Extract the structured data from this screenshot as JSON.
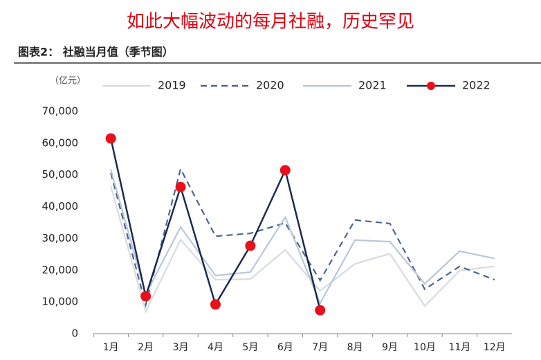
{
  "chart_data": {
    "type": "line",
    "headline": "如此大幅波动的每月社融，历史罕见",
    "title": "图表2： 社融当月值（季节图）",
    "y_unit": "（亿元）",
    "categories": [
      "1月",
      "2月",
      "3月",
      "4月",
      "5月",
      "6月",
      "7月",
      "8月",
      "9月",
      "10月",
      "11月",
      "12月"
    ],
    "series": [
      {
        "name": "2019",
        "color": "#d8dbe0",
        "dash": false,
        "marker": false,
        "values": [
          46400,
          7000,
          29600,
          17000,
          17200,
          26400,
          13500,
          22000,
          25200,
          8700,
          19900,
          21200
        ]
      },
      {
        "name": "2020",
        "color": "#4a6690",
        "dash": true,
        "marker": false,
        "values": [
          50600,
          9100,
          51900,
          30700,
          31600,
          34900,
          16800,
          35800,
          34700,
          14000,
          21200,
          17000
        ]
      },
      {
        "name": "2021",
        "color": "#b9c6d6",
        "dash": false,
        "marker": false,
        "values": [
          51700,
          12400,
          33600,
          18300,
          19400,
          36700,
          9600,
          29500,
          29000,
          15700,
          26000,
          23700
        ]
      },
      {
        "name": "2022",
        "color": "#1c2a4f",
        "dash": false,
        "marker": true,
        "marker_color": "#e8101a",
        "values": [
          61500,
          11800,
          46200,
          9200,
          27700,
          51500,
          7400,
          null,
          null,
          null,
          null,
          null
        ]
      }
    ],
    "ylim": [
      0,
      70000
    ],
    "yticks": [
      0,
      {
        "value": 10000,
        "label": "10,000"
      },
      {
        "value": 20000,
        "label": "20,000"
      },
      {
        "value": 30000,
        "label": "30,000"
      },
      {
        "value": 40000,
        "label": "40,000"
      },
      {
        "value": 50000,
        "label": "50,000"
      },
      {
        "value": 60000,
        "label": "60,000"
      },
      {
        "value": 70000,
        "label": "70,000"
      }
    ],
    "grid": false,
    "legend": "top"
  }
}
